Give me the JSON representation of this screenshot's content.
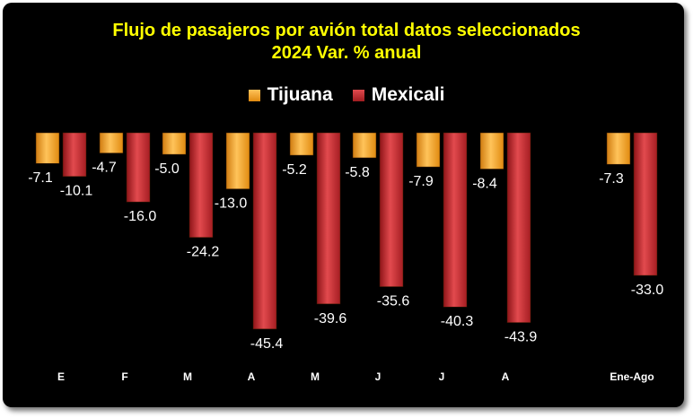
{
  "chart_data": {
    "type": "bar",
    "title": "Flujo de pasajeros por avión total datos seleccionados",
    "subtitle": "2024 Var. % anual",
    "categories": [
      "E",
      "F",
      "M",
      "A",
      "M",
      "J",
      "J",
      "A",
      "Ene-Ago"
    ],
    "series": [
      {
        "name": "Tijuana",
        "color": "#f5a623",
        "values": [
          -7.1,
          -4.7,
          -5.0,
          -13.0,
          -5.2,
          -5.8,
          -7.9,
          -8.4,
          -7.3
        ]
      },
      {
        "name": "Mexicali",
        "color": "#c0282d",
        "values": [
          -10.1,
          -16.0,
          -24.2,
          -45.4,
          -39.6,
          -35.6,
          -40.3,
          -43.9,
          -33.0
        ]
      }
    ],
    "data_labels": true,
    "ylim": [
      -50,
      0
    ],
    "grid": false,
    "legend_position": "top",
    "background": "#000000",
    "title_color": "#ffff00",
    "text_color": "#ffffff"
  }
}
